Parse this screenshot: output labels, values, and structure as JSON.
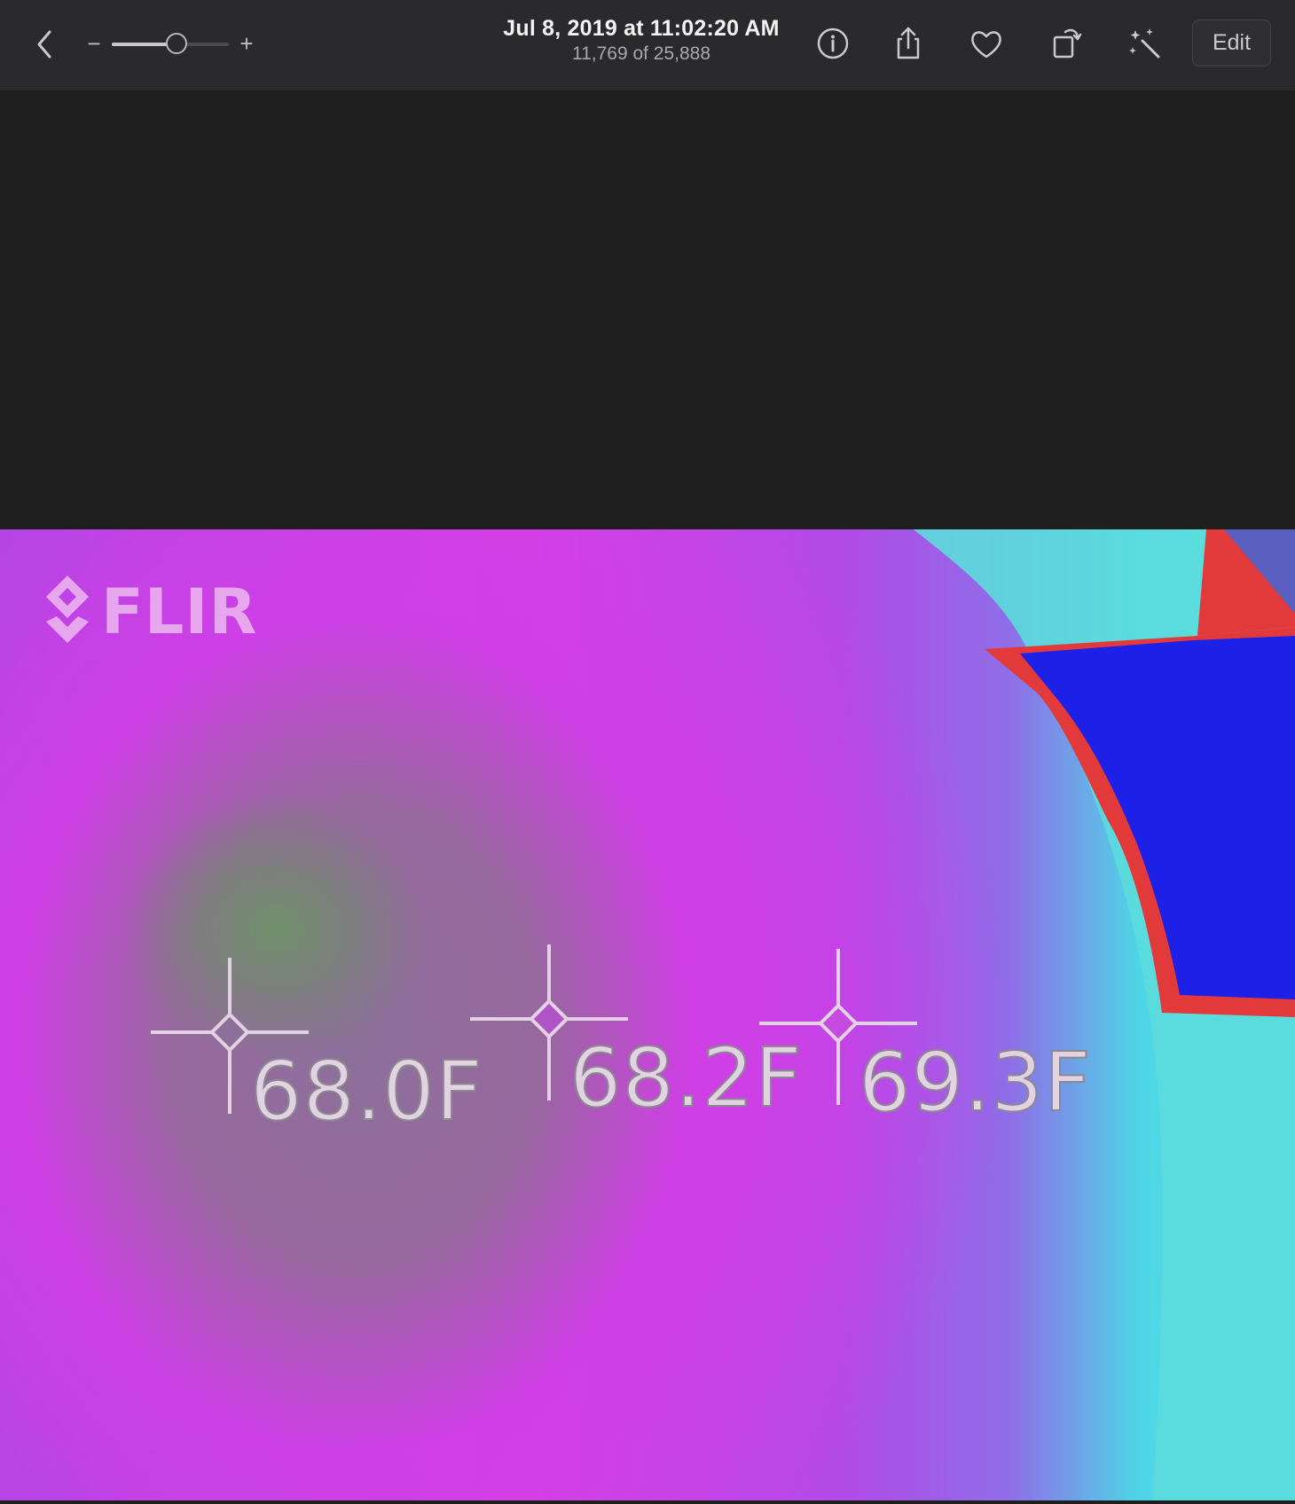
{
  "toolbar": {
    "title": "Jul 8, 2019 at 11:02:20 AM",
    "subtitle": "11,769 of 25,888",
    "zoom_minus": "−",
    "zoom_plus": "+",
    "zoom_level": 0.55,
    "edit_label": "Edit",
    "icons": [
      "chevron-left-icon",
      "info-icon",
      "share-icon",
      "heart-icon",
      "rotate-icon",
      "magic-wand-icon"
    ]
  },
  "photo": {
    "logo_text": "FLIR",
    "readings": [
      {
        "label": "68.0F"
      },
      {
        "label": "68.2F"
      },
      {
        "label": "69.3F"
      }
    ]
  },
  "colors": {
    "toolbar": "#2a2a2c",
    "background": "#1f1f20",
    "magenta": "#d43ee6",
    "cyan": "#56dede",
    "red": "#e23a3a",
    "blue": "#1d20e6"
  }
}
